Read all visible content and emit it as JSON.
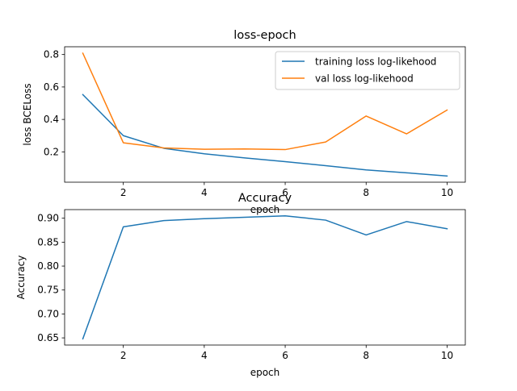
{
  "chart_data": [
    {
      "type": "line",
      "title": "loss-epoch",
      "xlabel": "epoch",
      "ylabel": "loss BCELoss",
      "x": [
        1,
        2,
        3,
        4,
        5,
        6,
        7,
        8,
        9,
        10
      ],
      "xlim": [
        0.55,
        10.45
      ],
      "ylim": [
        0.013,
        0.848
      ],
      "xticks": [
        2,
        4,
        6,
        8,
        10
      ],
      "yticks": [
        0.2,
        0.4,
        0.6,
        0.8
      ],
      "grid": false,
      "legend_position": "upper right",
      "series": [
        {
          "name": "training loss log-likehood",
          "color": "#1f77b4",
          "values": [
            0.553,
            0.3,
            0.222,
            0.188,
            0.163,
            0.14,
            0.115,
            0.089,
            0.071,
            0.051
          ]
        },
        {
          "name": "val loss log-likehood",
          "color": "#ff7f0e",
          "values": [
            0.808,
            0.256,
            0.224,
            0.216,
            0.218,
            0.214,
            0.261,
            0.421,
            0.311,
            0.458
          ]
        }
      ]
    },
    {
      "type": "line",
      "title": "Accuracy",
      "xlabel": "epoch",
      "ylabel": "Accuracy",
      "x": [
        1,
        2,
        3,
        4,
        5,
        6,
        7,
        8,
        9,
        10
      ],
      "xlim": [
        0.55,
        10.45
      ],
      "ylim": [
        0.635,
        0.918
      ],
      "xticks": [
        2,
        4,
        6,
        8,
        10
      ],
      "yticks": [
        0.65,
        0.7,
        0.75,
        0.8,
        0.85,
        0.9
      ],
      "grid": false,
      "series": [
        {
          "color": "#1f77b4",
          "values": [
            0.648,
            0.882,
            0.895,
            0.899,
            0.902,
            0.905,
            0.896,
            0.865,
            0.893,
            0.878
          ]
        }
      ]
    }
  ]
}
